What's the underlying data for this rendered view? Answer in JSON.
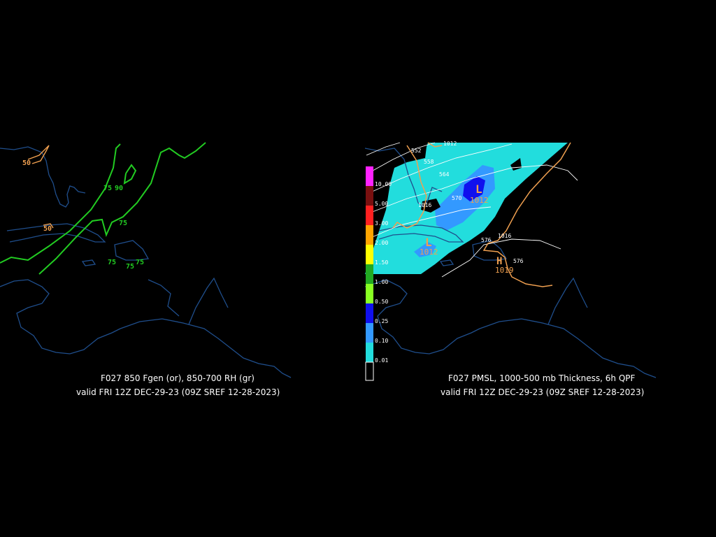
{
  "left_panel": {
    "caption_line1": "F027 850 Fgen (or), 850-700 RH (gr)",
    "caption_line2": "valid FRI 12Z DEC-29-23 (09Z SREF 12-28-2023)",
    "contour_labels": {
      "fgen_a": "50",
      "fgen_b": "50",
      "rh_a": "75",
      "rh_b": "90",
      "rh_c": "75",
      "rh_d": "75",
      "rh_e": "75",
      "rh_f": "75"
    },
    "colors": {
      "fgen": "#f0a050",
      "rh": "#22cc22",
      "coast": "#1f4e8c"
    }
  },
  "right_panel": {
    "caption_line1": "F027 PMSL, 1000-500 mb Thickness, 6h QPF",
    "caption_line2": "valid FRI 12Z DEC-29-23 (09Z SREF 12-28-2023)",
    "qpf_scale": [
      {
        "value": "10.00",
        "color": "#ff22ff"
      },
      {
        "value": "5.00",
        "color": "#7a1010"
      },
      {
        "value": "3.00",
        "color": "#ff2020"
      },
      {
        "value": "2.00",
        "color": "#ffa500"
      },
      {
        "value": "1.50",
        "color": "#ffff00"
      },
      {
        "value": "1.00",
        "color": "#22aa22"
      },
      {
        "value": "0.50",
        "color": "#88ff22"
      },
      {
        "value": "0.25",
        "color": "#1010ee"
      },
      {
        "value": "0.10",
        "color": "#3399ff"
      },
      {
        "value": "0.01",
        "color": "#22dddd"
      }
    ],
    "low_symbol": "L",
    "high_symbol": "H",
    "low_a_value": "1012",
    "low_b_value": "1012",
    "high_value": "1019",
    "isobars": [
      "1016",
      "1016",
      "1012"
    ],
    "thickness": [
      "552",
      "558",
      "564",
      "570",
      "576",
      "576"
    ],
    "colors": {
      "pmsl": "#f0a050",
      "thickness": "#ffffff",
      "qpf_light": "#22dddd"
    }
  }
}
